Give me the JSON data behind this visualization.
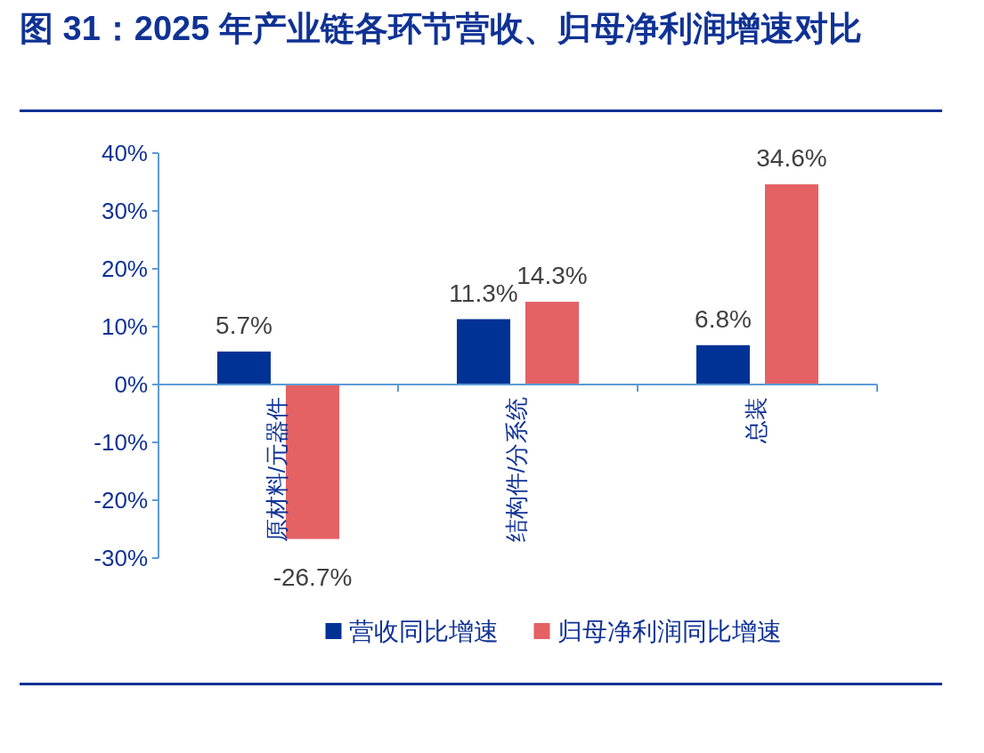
{
  "chart_data": {
    "type": "bar",
    "title": "图 31：2025 年产业链各环节营收、归母净利润增速对比",
    "categories": [
      "原材料/元器件",
      "结构件/分系统",
      "总装"
    ],
    "series": [
      {
        "name": "营收同比增速",
        "color": "#003296",
        "values": [
          5.7,
          11.3,
          6.8
        ],
        "value_labels": [
          "5.7%",
          "11.3%",
          "6.8%"
        ]
      },
      {
        "name": "归母净利润同比增速",
        "color": "#e46164",
        "values": [
          -26.7,
          14.3,
          34.6
        ],
        "value_labels": [
          "-26.7%",
          "14.3%",
          "34.6%"
        ]
      }
    ],
    "ylim": [
      -30,
      40
    ],
    "yticks": [
      {
        "value": -30,
        "label": "-30%"
      },
      {
        "value": -20,
        "label": "-20%"
      },
      {
        "value": -10,
        "label": "-10%"
      },
      {
        "value": 0,
        "label": "0%"
      },
      {
        "value": 10,
        "label": "10%"
      },
      {
        "value": 20,
        "label": "20%"
      },
      {
        "value": 30,
        "label": "30%"
      },
      {
        "value": 40,
        "label": "40%"
      }
    ],
    "legend": "bottom",
    "grid": false
  }
}
